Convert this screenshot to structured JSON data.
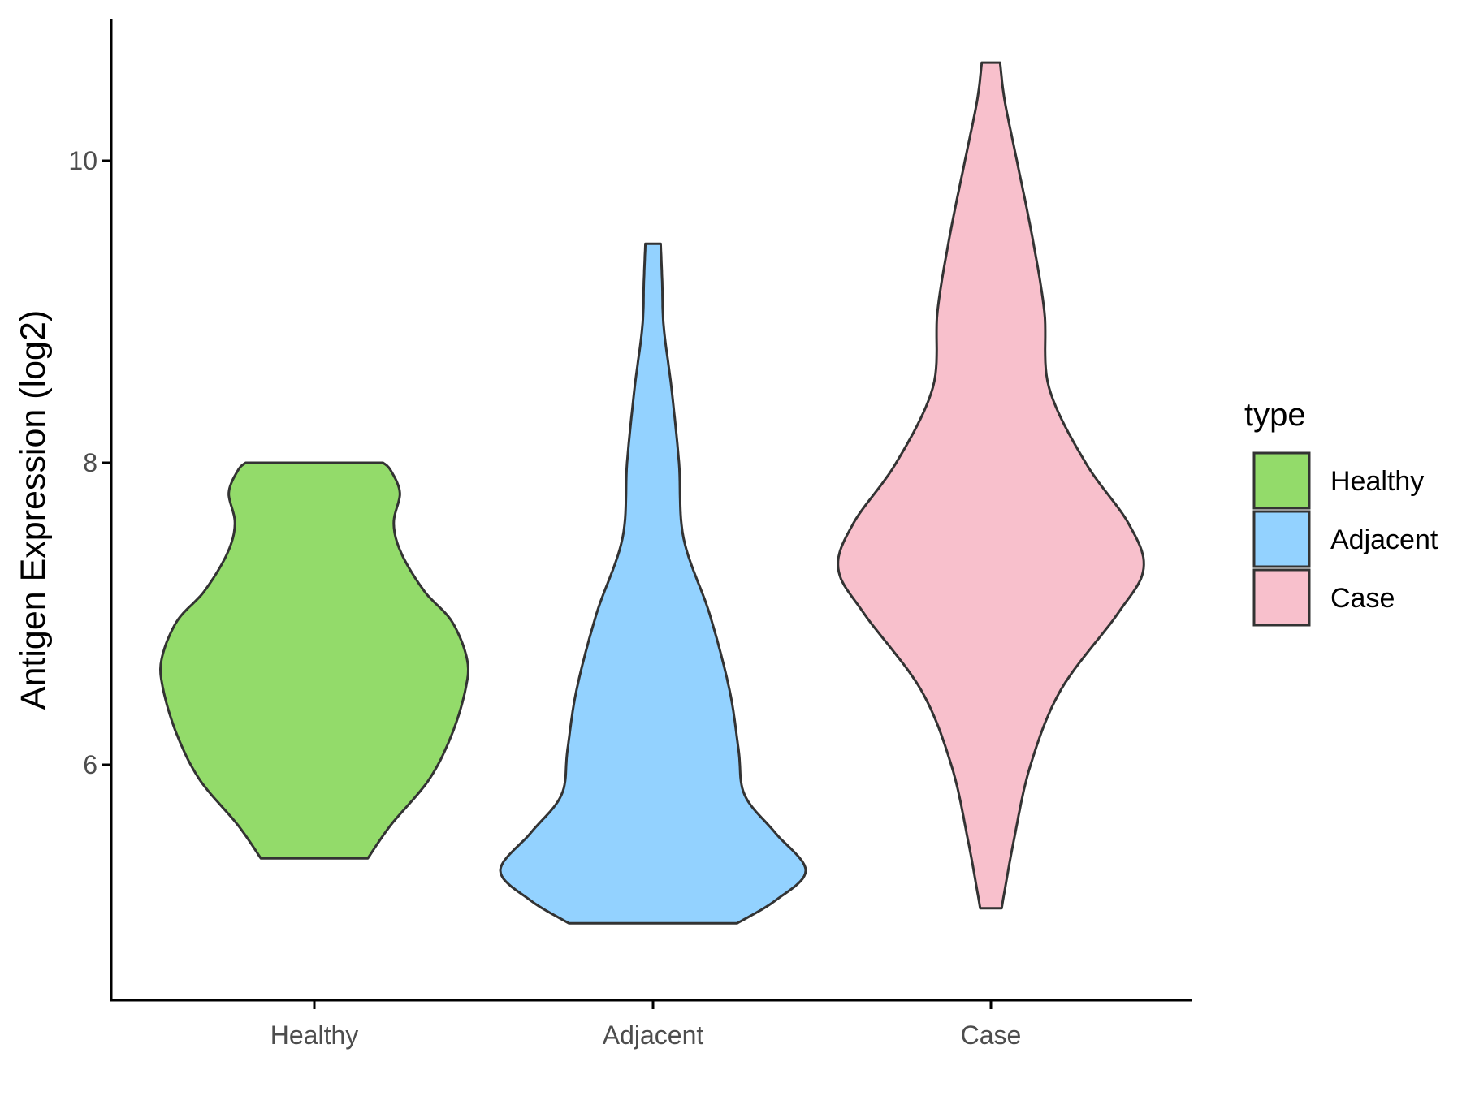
{
  "chart_data": {
    "type": "violin",
    "ylabel": "Antigen Expression (log2)",
    "yticks": [
      6,
      8,
      10
    ],
    "ylim": [
      4.7,
      10.95
    ],
    "categories": [
      "Healthy",
      "Adjacent",
      "Case"
    ],
    "legend": {
      "title": "type",
      "position": "right",
      "entries": [
        "Healthy",
        "Adjacent",
        "Case"
      ]
    },
    "series": [
      {
        "name": "Healthy",
        "color": "#93DB6A",
        "range": [
          5.38,
          8.0
        ],
        "density_profile": [
          [
            5.38,
            0.35
          ],
          [
            5.6,
            0.5
          ],
          [
            5.9,
            0.75
          ],
          [
            6.2,
            0.9
          ],
          [
            6.5,
            0.99
          ],
          [
            6.7,
            1.0
          ],
          [
            6.95,
            0.9
          ],
          [
            7.15,
            0.72
          ],
          [
            7.4,
            0.57
          ],
          [
            7.6,
            0.52
          ],
          [
            7.8,
            0.56
          ],
          [
            7.95,
            0.5
          ],
          [
            8.0,
            0.45
          ]
        ]
      },
      {
        "name": "Adjacent",
        "color": "#93D2FF",
        "range": [
          4.95,
          9.45
        ],
        "density_profile": [
          [
            4.95,
            0.55
          ],
          [
            5.1,
            0.8
          ],
          [
            5.3,
            1.0
          ],
          [
            5.55,
            0.8
          ],
          [
            5.8,
            0.6
          ],
          [
            6.1,
            0.56
          ],
          [
            6.5,
            0.5
          ],
          [
            7.0,
            0.37
          ],
          [
            7.5,
            0.2
          ],
          [
            8.0,
            0.17
          ],
          [
            8.5,
            0.12
          ],
          [
            8.9,
            0.07
          ],
          [
            9.2,
            0.06
          ],
          [
            9.45,
            0.05
          ]
        ]
      },
      {
        "name": "Case",
        "color": "#F8C0CC",
        "range": [
          5.05,
          10.65
        ],
        "density_profile": [
          [
            5.05,
            0.07
          ],
          [
            5.5,
            0.15
          ],
          [
            6.0,
            0.26
          ],
          [
            6.5,
            0.46
          ],
          [
            7.0,
            0.83
          ],
          [
            7.3,
            1.0
          ],
          [
            7.6,
            0.9
          ],
          [
            8.0,
            0.62
          ],
          [
            8.5,
            0.38
          ],
          [
            9.0,
            0.35
          ],
          [
            9.5,
            0.27
          ],
          [
            10.0,
            0.17
          ],
          [
            10.4,
            0.09
          ],
          [
            10.65,
            0.06
          ]
        ]
      }
    ]
  }
}
